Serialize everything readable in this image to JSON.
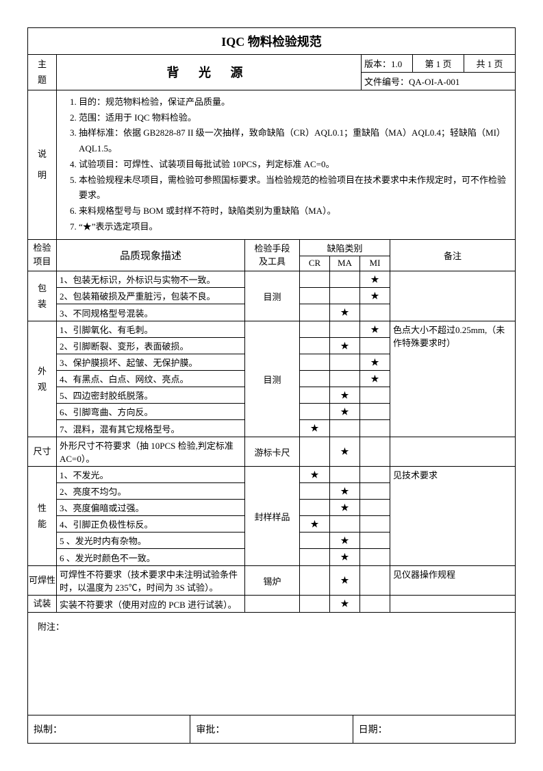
{
  "doc": {
    "title": "IQC 物料检验规范",
    "theme_label_1": "主",
    "theme_label_2": "题",
    "subject": "背 光 源",
    "version": "版本：1.0",
    "page": "第 1 页",
    "total_pages": "共 1 页",
    "doc_no": "文件编号：QA-OI-A-001"
  },
  "explain": {
    "label_1": "说",
    "label_2": "明",
    "items": [
      "目的：规范物料检验，保证产品质量。",
      "范围：适用于 IQC 物料检验。",
      "抽样标准：依据 GB2828-87 II 级一次抽样，致命缺陷（CR）AQL0.1；重缺陷（MA）AQL0.4；轻缺陷（MI）AQL1.5。",
      "试验项目：可焊性、试装项目每批试验 10PCS，判定标准 AC=0。",
      "本检验规程未尽项目，需检验可参照国标要求。当检验规范的检验项目在技术要求中未作规定时，可不作检验要求。",
      "来料规格型号与 BOM 或封样不符时，缺陷类别为重缺陷（MA）。",
      "“★”表示选定项目。"
    ]
  },
  "table": {
    "headers": {
      "category": [
        "检验",
        "项目"
      ],
      "description": "品质现象描述",
      "tool": [
        "检验手段",
        "及工具"
      ],
      "defect_group": "缺陷类别",
      "cr": "CR",
      "ma": "MA",
      "mi": "MI",
      "note": "备注"
    },
    "star": "★",
    "sections": [
      {
        "category": [
          "包",
          "装"
        ],
        "tool": "目测",
        "note": "",
        "rows": [
          {
            "desc": "1、包装无标识，外标识与实物不一致。",
            "cr": "",
            "ma": "",
            "mi": "★"
          },
          {
            "desc": "2、包装箱破损及严重脏污，包装不良。",
            "cr": "",
            "ma": "",
            "mi": "★"
          },
          {
            "desc": "3、不同规格型号混装。",
            "cr": "",
            "ma": "★",
            "mi": ""
          }
        ]
      },
      {
        "category": [
          "外",
          "观"
        ],
        "tool": "目测",
        "note": "色点大小不超过0.25mm,（未作特殊要求时）",
        "rows": [
          {
            "desc": "1、引脚氧化、有毛刺。",
            "cr": "",
            "ma": "",
            "mi": "★"
          },
          {
            "desc": "2、引脚断裂、变形，表面破损。",
            "cr": "",
            "ma": "★",
            "mi": ""
          },
          {
            "desc": "3、保护膜损坏、起皱、无保护膜。",
            "cr": "",
            "ma": "",
            "mi": "★"
          },
          {
            "desc": "4、有黑点、白点、网纹、亮点。",
            "cr": "",
            "ma": "",
            "mi": "★"
          },
          {
            "desc": "5、四边密封胶纸脱落。",
            "cr": "",
            "ma": "★",
            "mi": ""
          },
          {
            "desc": "6、引脚弯曲、方向反。",
            "cr": "",
            "ma": "★",
            "mi": ""
          },
          {
            "desc": "7、混料，混有其它规格型号。",
            "cr": "★",
            "ma": "",
            "mi": ""
          }
        ]
      },
      {
        "category": [
          "尺寸"
        ],
        "tool": "游标卡尺",
        "note": "",
        "rows": [
          {
            "desc": "外形尺寸不符要求（抽 10PCS 检验,判定标准AC=0）。",
            "cr": "",
            "ma": "★",
            "mi": ""
          }
        ]
      },
      {
        "category": [
          "性",
          "能"
        ],
        "tool": "封样样品",
        "note": "见技术要求",
        "rows": [
          {
            "desc": "1、不发光。",
            "cr": "★",
            "ma": "",
            "mi": ""
          },
          {
            "desc": "2、亮度不均匀。",
            "cr": "",
            "ma": "★",
            "mi": ""
          },
          {
            "desc": "3、亮度偏暗或过强。",
            "cr": "",
            "ma": "★",
            "mi": ""
          },
          {
            "desc": "4、引脚正负极性标反。",
            "cr": "★",
            "ma": "",
            "mi": ""
          },
          {
            "desc": "5 、发光时内有杂物。",
            "cr": "",
            "ma": "★",
            "mi": ""
          },
          {
            "desc": "6 、发光时颜色不一致。",
            "cr": "",
            "ma": "★",
            "mi": ""
          }
        ]
      },
      {
        "category": [
          "可焊性"
        ],
        "tool": "锡炉",
        "note": "见仪器操作规程",
        "rows": [
          {
            "desc": "可焊性不符要求（技术要求中未注明试验条件时，以温度为 235℃，时间为 3S 试验）。",
            "cr": "",
            "ma": "★",
            "mi": ""
          }
        ]
      },
      {
        "category": [
          "试装"
        ],
        "tool": "",
        "note": "",
        "rows": [
          {
            "desc": "实装不符要求（使用对应的 PCB 进行试装）。",
            "cr": "",
            "ma": "★",
            "mi": ""
          }
        ]
      }
    ]
  },
  "appendix_label": "附注：",
  "sign": {
    "prepared": "拟制：",
    "approved": "审批：",
    "date": "日期："
  }
}
